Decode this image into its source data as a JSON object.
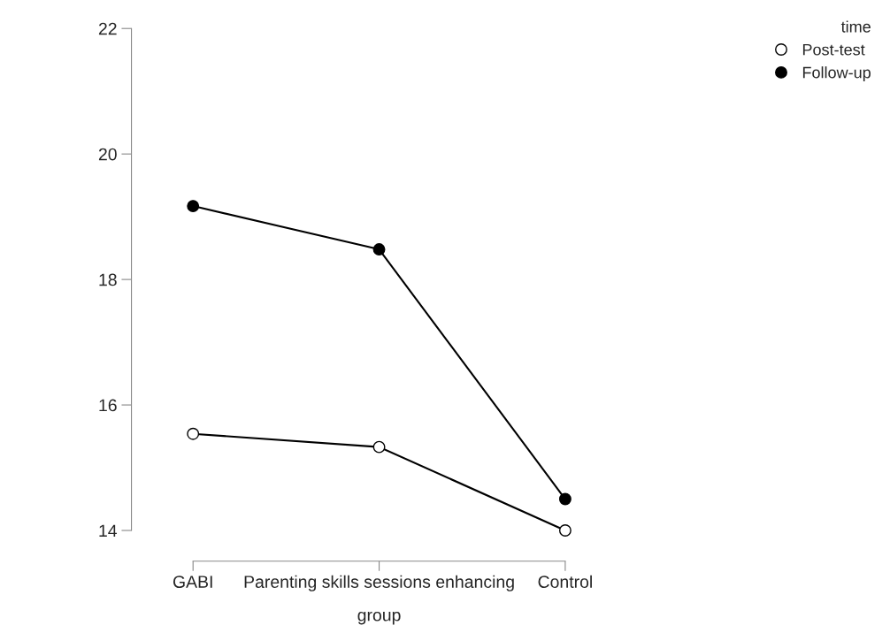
{
  "chart_data": {
    "type": "line",
    "xlabel": "group",
    "legend_title": "time",
    "categories": [
      "GABI",
      "Parenting skills sessions enhancing",
      "Control"
    ],
    "series": [
      {
        "name": "Post-test",
        "color": "#ffffff",
        "values": [
          15.54,
          15.33,
          14.0
        ]
      },
      {
        "name": "Follow-up",
        "color": "#000000",
        "values": [
          19.17,
          18.48,
          14.5
        ]
      }
    ],
    "ylim": [
      14,
      22
    ],
    "yticks": [
      14,
      16,
      18,
      20,
      22
    ],
    "grid": false,
    "legend": "top right",
    "marker": "circle",
    "line_style": "solid"
  }
}
